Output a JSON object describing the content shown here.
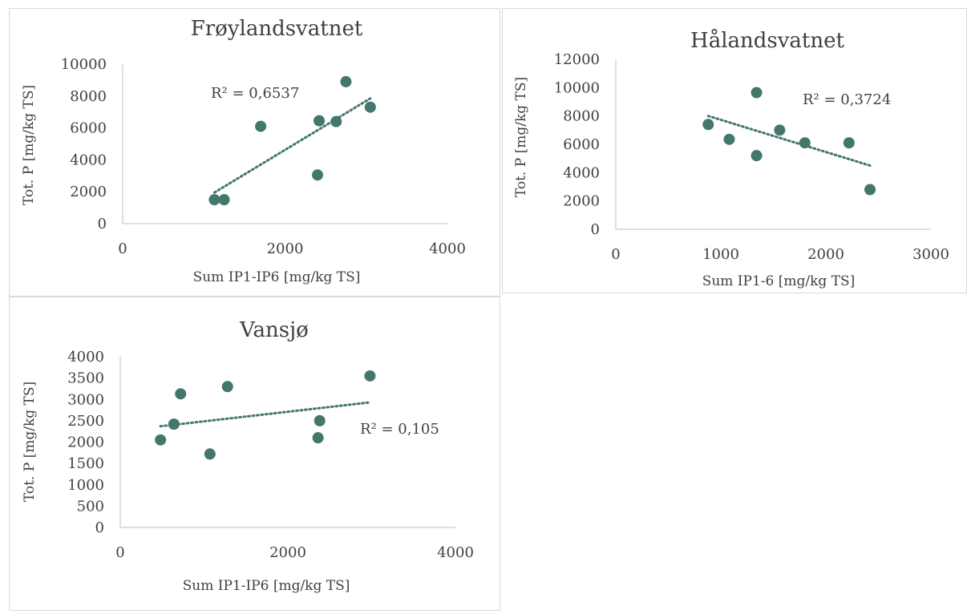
{
  "chart_data": [
    {
      "type": "scatter",
      "title": "Frøylandsvatnet",
      "xlabel": "Sum IP1-IP6 [mg/kg TS]",
      "ylabel": "Tot. P [mg/kg TS]",
      "xlim": [
        0,
        4000
      ],
      "ylim": [
        0,
        10000
      ],
      "xticks": [
        0,
        2000,
        4000
      ],
      "yticks": [
        0,
        2000,
        4000,
        6000,
        8000,
        10000
      ],
      "x_tick_labels": [
        "0",
        "2000",
        "4000"
      ],
      "y_tick_labels": [
        "0",
        "2000",
        "4000",
        "6000",
        "8000",
        "10000"
      ],
      "marker_color": "#43766c",
      "trendline_color": "#43766c",
      "grid": false,
      "points": [
        {
          "x": 1130,
          "y": 1500
        },
        {
          "x": 1250,
          "y": 1500
        },
        {
          "x": 1700,
          "y": 6100
        },
        {
          "x": 2400,
          "y": 3050
        },
        {
          "x": 2420,
          "y": 6450
        },
        {
          "x": 2630,
          "y": 6400
        },
        {
          "x": 2750,
          "y": 8900
        },
        {
          "x": 3050,
          "y": 7300
        }
      ],
      "trendline": {
        "x": [
          1130,
          3050
        ],
        "y": [
          1950,
          7850
        ]
      },
      "r2_label": "R² = 0,6537"
    },
    {
      "type": "scatter",
      "title": "Hålandsvatnet",
      "xlabel": "Sum IP1-6 [mg/kg TS]",
      "ylabel": "Tot. P [mg/kg TS]",
      "xlim": [
        0,
        3000
      ],
      "ylim": [
        0,
        12000
      ],
      "xticks": [
        0,
        1000,
        2000,
        3000
      ],
      "yticks": [
        0,
        2000,
        4000,
        6000,
        8000,
        10000,
        12000
      ],
      "x_tick_labels": [
        "0",
        "1000",
        "2000",
        "3000"
      ],
      "y_tick_labels": [
        "0",
        "2000",
        "4000",
        "6000",
        "8000",
        "10000",
        "12000"
      ],
      "marker_color": "#43766c",
      "trendline_color": "#43766c",
      "grid": false,
      "points": [
        {
          "x": 880,
          "y": 7400
        },
        {
          "x": 1080,
          "y": 6350
        },
        {
          "x": 1340,
          "y": 9650
        },
        {
          "x": 1340,
          "y": 5200
        },
        {
          "x": 1560,
          "y": 7000
        },
        {
          "x": 1800,
          "y": 6100
        },
        {
          "x": 2220,
          "y": 6100
        },
        {
          "x": 2420,
          "y": 2800
        }
      ],
      "trendline": {
        "x": [
          880,
          2420
        ],
        "y": [
          8000,
          4500
        ]
      },
      "r2_label": "R² = 0,3724"
    },
    {
      "type": "scatter",
      "title": "Vansjø",
      "xlabel": "Sum IP1-IP6 [mg/kg TS]",
      "ylabel": "Tot. P [mg/kg TS]",
      "xlim": [
        0,
        4000
      ],
      "ylim": [
        0,
        4000
      ],
      "xticks": [
        0,
        2000,
        4000
      ],
      "yticks": [
        0,
        500,
        1000,
        1500,
        2000,
        2500,
        3000,
        3500,
        4000
      ],
      "x_tick_labels": [
        "0",
        "2000",
        "4000"
      ],
      "y_tick_labels": [
        "0",
        "500",
        "1000",
        "1500",
        "2000",
        "2500",
        "3000",
        "3500",
        "4000"
      ],
      "marker_color": "#43766c",
      "trendline_color": "#43766c",
      "grid": false,
      "points": [
        {
          "x": 480,
          "y": 2050
        },
        {
          "x": 640,
          "y": 2420
        },
        {
          "x": 720,
          "y": 3130
        },
        {
          "x": 1070,
          "y": 1720
        },
        {
          "x": 1280,
          "y": 3300
        },
        {
          "x": 2360,
          "y": 2100
        },
        {
          "x": 2380,
          "y": 2500
        },
        {
          "x": 2980,
          "y": 3550
        }
      ],
      "trendline": {
        "x": [
          480,
          2980
        ],
        "y": [
          2370,
          2930
        ]
      },
      "r2_label": "R² = 0,105"
    }
  ]
}
